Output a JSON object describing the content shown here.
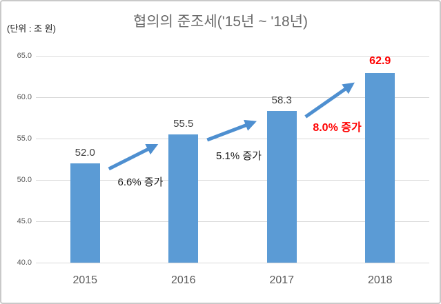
{
  "figure": {
    "unit_label": "(단위 : 조 원)",
    "title": "협의의 준조세('15년 ~ '18년)"
  },
  "chart_data": {
    "type": "bar",
    "title": "협의의 준조세('15년 ~ '18년)",
    "unit_label": "(단위 : 조 원)",
    "categories": [
      "2015",
      "2016",
      "2017",
      "2018"
    ],
    "values": [
      52.0,
      55.5,
      58.3,
      62.9
    ],
    "value_labels": [
      "52.0",
      "55.5",
      "58.3",
      "62.9"
    ],
    "highlight_index": 3,
    "ylim": [
      40.0,
      65.0
    ],
    "yticks": [
      40.0,
      45.0,
      50.0,
      55.0,
      60.0,
      65.0
    ],
    "ytick_labels": [
      "40.0",
      "45.0",
      "50.0",
      "55.0",
      "60.0",
      "65.0"
    ],
    "grid": true,
    "legend": false,
    "annotations": [
      {
        "between": [
          "2015",
          "2016"
        ],
        "text": "6.6% 증가",
        "color": "#1a1a1a",
        "bold": false
      },
      {
        "between": [
          "2016",
          "2017"
        ],
        "text": "5.1% 증가",
        "color": "#1a1a1a",
        "bold": false
      },
      {
        "between": [
          "2017",
          "2018"
        ],
        "text": "8.0% 증가",
        "color": "#ff0000",
        "bold": true
      }
    ],
    "colors": {
      "bar": "#5b9bd5",
      "arrow": "#4e8fd0",
      "gridline": "#d9d9d9",
      "axis_text": "#595959",
      "value_text": "#404040",
      "highlight_text": "#ff0000",
      "title_text": "#6a6a6a"
    }
  }
}
